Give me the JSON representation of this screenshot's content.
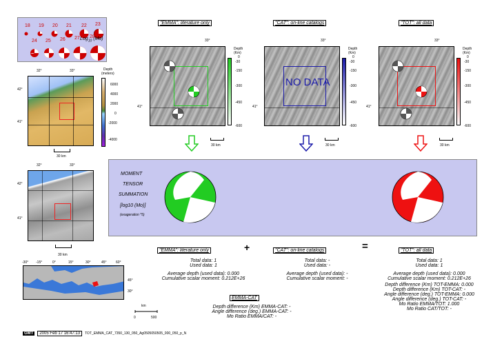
{
  "mag_legend": {
    "top_labels": [
      "18",
      "19",
      "20",
      "21",
      "22",
      "23"
    ],
    "bottom_labels": [
      "24",
      "25",
      "26",
      "27",
      "28"
    ],
    "axis_label": "Log",
    "axis_sub": "10",
    "axis_unit": "(Mo)"
  },
  "depth_bar": {
    "title": "Depth",
    "unit": "(meters)",
    "ticks": [
      "6000",
      "4000",
      "2000",
      "0",
      "-2000",
      "-4000"
    ]
  },
  "map_ticks": {
    "lon": [
      "32°",
      "33°"
    ],
    "lat": [
      "42°",
      "41°"
    ],
    "scale": "30 km"
  },
  "panels": [
    {
      "header": "\"EMMA\": literature only",
      "lon": "33°",
      "lat": "41°",
      "scale": "30 km",
      "depth_title": "Depth",
      "depth_unit": "(Km)",
      "depth_ticks": [
        "0",
        "-30",
        "-150",
        "-300",
        "-450",
        "-600"
      ],
      "nodata": ""
    },
    {
      "header": "\"CAT\": on-line catalogs",
      "lon": "33°",
      "lat": "41°",
      "scale": "30 km",
      "depth_title": "Depth",
      "depth_unit": "(Km)",
      "depth_ticks": [
        "0",
        "-30",
        "-150",
        "-300",
        "-450",
        "-600"
      ],
      "nodata": "NO DATA"
    },
    {
      "header": "\"TOT\": all data",
      "lon": "33°",
      "lat": "41°",
      "scale": "30 km",
      "depth_title": "Depth",
      "depth_unit": "(Km)",
      "depth_ticks": [
        "0",
        "-30",
        "-150",
        "-300",
        "-450",
        "-600"
      ],
      "nodata": ""
    }
  ],
  "summation": {
    "line1": "MOMENT",
    "line2": "TENSOR",
    "line3": "SUMMATION",
    "line4": "[log10 (Mo)]",
    "line5": "(exageration *5)"
  },
  "stats": {
    "emma": {
      "header": "\"EMMA\": literature only",
      "lines": [
        "Total data:    1",
        "Used data:    1",
        "Average depth (used data):    0.000",
        "Cumulative scalar moment:  0.212E+26"
      ]
    },
    "plus": "+",
    "cat": {
      "header": "\"CAT\": on-line catalogs",
      "lines": [
        "Total data: -",
        "Used data: -",
        "Average depth (used data): -",
        "Cumulative scalar moment: -"
      ]
    },
    "equals": "=",
    "tot": {
      "header": "\"TOT\": all data",
      "lines": [
        "Total data:    1",
        "Used data:    1",
        "Average depth (used data):    0.000",
        "Cumulative scalar moment:  0.212E+26",
        "Depth difference (Km) TOT-EMMA:    0.000",
        "Depth difference (Km) TOT-CAT: -",
        "Angle difference (deg.) TOT-EMMA:    0.000",
        "Angle difference (deg.) TOT-CAT: -",
        "Mo Ratio EMMA/TOT:    1.000",
        "Mo Ratio CAT/TOT: -"
      ]
    },
    "emma_cat": {
      "header": "EMMA-CAT",
      "lines": [
        "Depth difference (Km) EMMA-CAT: -",
        "Angle difference (deg.) EMMA-CAT: -",
        "Mo Ratio EMMA/CAT: -"
      ]
    }
  },
  "world_ticks": [
    "-30°",
    "-15°",
    "0°",
    "15°",
    "30°",
    "45°",
    "60°"
  ],
  "world_lat": [
    "45°",
    "30°"
  ],
  "world_scale": {
    "unit": "km",
    "a": "0",
    "b": "500"
  },
  "footer": {
    "logo": "GMT",
    "date": "2005 Feb 17 16:47:13",
    "file": "TOT_EMMA_CAT_7350_130_050_Ag0505050505_000_050_p_N"
  },
  "colors": {
    "panel_bg": "#c8c8f0",
    "emma": "#22cc22",
    "cat": "#1a1aaa",
    "tot": "#ee1111",
    "frame_red": "#ee2222"
  }
}
